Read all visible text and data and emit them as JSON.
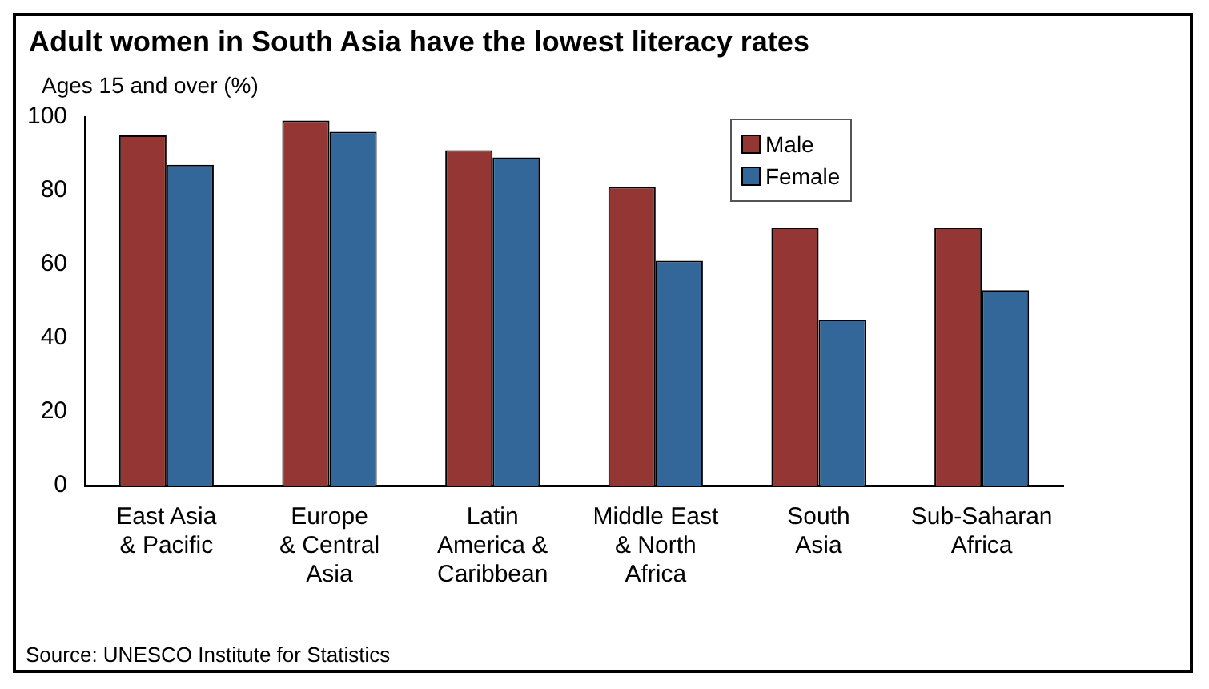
{
  "chart_data": {
    "type": "bar",
    "title": "Adult women in South Asia have the lowest literacy rates",
    "ylabel": "Ages 15 and over (%)",
    "categories": [
      "East Asia\n& Pacific",
      "Europe\n& Central\nAsia",
      "Latin\nAmerica &\nCaribbean",
      "Middle East\n& North\nAfrica",
      "South\nAsia",
      "Sub-Saharan\nAfrica"
    ],
    "series": [
      {
        "name": "Male",
        "color": "#943634",
        "values": [
          95,
          99,
          91,
          81,
          70,
          70
        ]
      },
      {
        "name": "Female",
        "color": "#336699",
        "values": [
          87,
          96,
          89,
          61,
          45,
          53
        ]
      }
    ],
    "ylim": [
      0,
      100
    ],
    "yticks": [
      0,
      20,
      40,
      60,
      80,
      100
    ],
    "grid": false,
    "legend": "top",
    "annotations": [
      "Source: UNESCO Institute for Statistics"
    ]
  }
}
